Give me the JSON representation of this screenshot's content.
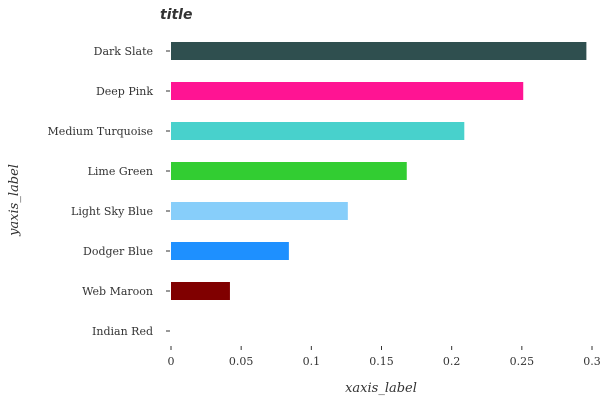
{
  "chart_data": {
    "type": "bar",
    "orientation": "horizontal",
    "title": "title",
    "xlabel": "xaxis_label",
    "ylabel": "yaxis_label",
    "categories": [
      "Dark Slate",
      "Deep Pink",
      "Medium Turquoise",
      "Lime Green",
      "Light Sky Blue",
      "Dodger Blue",
      "Web Maroon",
      "Indian Red"
    ],
    "values": [
      0.296,
      0.251,
      0.209,
      0.168,
      0.126,
      0.084,
      0.042,
      0.0
    ],
    "colors": [
      "#2f4f4f",
      "#ff1493",
      "#48d1cc",
      "#32cd32",
      "#87cefa",
      "#1e90ff",
      "#800000",
      "#cd5c5c"
    ],
    "xlim": [
      0,
      0.3
    ],
    "xticks": [
      0,
      0.05,
      0.1,
      0.15,
      0.2,
      0.25,
      0.3
    ],
    "xtick_labels": [
      "0",
      "0.05",
      "0.1",
      "0.15",
      "0.2",
      "0.25",
      "0.3"
    ],
    "grid": false,
    "legend": "none"
  }
}
